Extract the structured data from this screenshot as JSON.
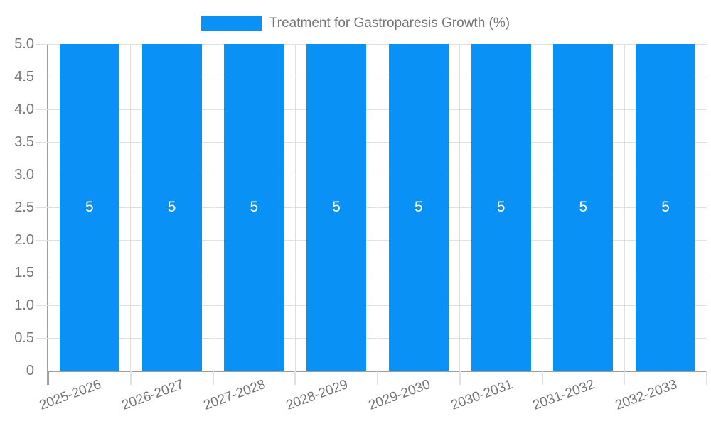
{
  "chart_data": {
    "type": "bar",
    "title": "Treatment for Gastroparesis Growth (%)",
    "legend_position": "top",
    "categories": [
      "2025-2026",
      "2026-2027",
      "2027-2028",
      "2028-2029",
      "2029-2030",
      "2030-2031",
      "2031-2032",
      "2032-2033"
    ],
    "values": [
      5,
      5,
      5,
      5,
      5,
      5,
      5,
      5
    ],
    "bar_value_labels": [
      "5",
      "5",
      "5",
      "5",
      "5",
      "5",
      "5",
      "5"
    ],
    "xlabel": "",
    "ylabel": "",
    "ylim": [
      0,
      5
    ],
    "grid": true,
    "y_ticks": [
      {
        "value": 0,
        "label": "0"
      },
      {
        "value": 0.5,
        "label": "0.5"
      },
      {
        "value": 1,
        "label": "1.0"
      },
      {
        "value": 1.5,
        "label": "1.5"
      },
      {
        "value": 2,
        "label": "2.0"
      },
      {
        "value": 2.5,
        "label": "2.5"
      },
      {
        "value": 3,
        "label": "3.0"
      },
      {
        "value": 3.5,
        "label": "3.5"
      },
      {
        "value": 4,
        "label": "4.0"
      },
      {
        "value": 4.5,
        "label": "4.5"
      },
      {
        "value": 5,
        "label": "5.0"
      }
    ],
    "colors": {
      "bar": "#0991F5",
      "bar_label": "#FFFFFF",
      "grid": "#E0E0E0",
      "axis": "#9E9E9E",
      "text": "#757575"
    }
  }
}
